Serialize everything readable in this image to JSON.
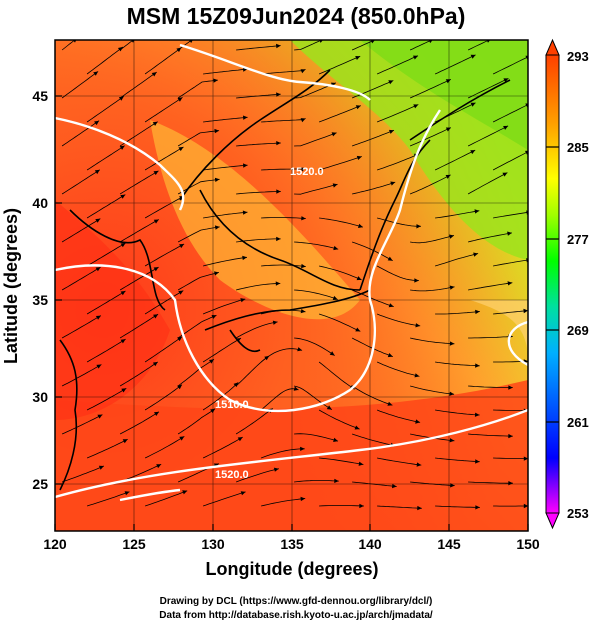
{
  "title": "MSM 15Z09Jun2024 (850.0hPa)",
  "xlabel": "Longitude (degrees)",
  "ylabel": "Latitude  (degrees)",
  "credits": [
    "Drawing by DCL (https://www.gfd-dennou.org/library/dcl/)",
    "Data from http://database.rish.kyoto-u.ac.jp/arch/jmadata/"
  ],
  "map": {
    "lon_range": [
      120,
      150
    ],
    "lat_range": [
      22.4,
      47.6
    ],
    "lon_ticks": [
      "120",
      "125",
      "130",
      "135",
      "140",
      "145",
      "150"
    ],
    "lat_ticks": [
      "25",
      "30",
      "35",
      "40",
      "45"
    ],
    "contour_labels": [
      "1520.0",
      "1510.0",
      "1520.0"
    ],
    "fields": [
      "temperature (K) shading",
      "wind streamlines",
      "geopotential height contours (white)"
    ]
  },
  "colorbar": {
    "min": 253,
    "max": 293,
    "tick_labels": [
      "293",
      "285",
      "277",
      "269",
      "261",
      "253"
    ],
    "colors": [
      "#ff00ff",
      "#0000ff",
      "#00b0ff",
      "#00e0a0",
      "#00ff00",
      "#a0ff00",
      "#ffff00",
      "#ffa000",
      "#ff4000"
    ]
  }
}
